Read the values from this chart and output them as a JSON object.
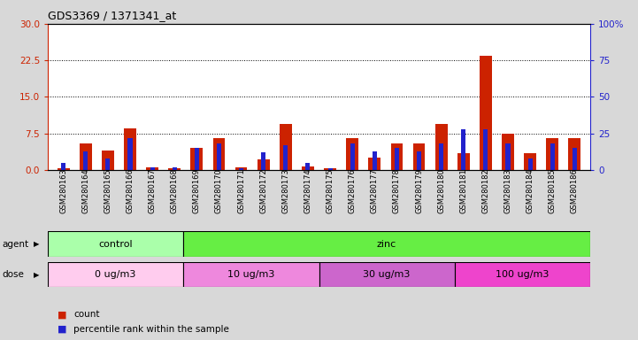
{
  "title": "GDS3369 / 1371341_at",
  "samples": [
    "GSM280163",
    "GSM280164",
    "GSM280165",
    "GSM280166",
    "GSM280167",
    "GSM280168",
    "GSM280169",
    "GSM280170",
    "GSM280171",
    "GSM280172",
    "GSM280173",
    "GSM280174",
    "GSM280175",
    "GSM280176",
    "GSM280177",
    "GSM280178",
    "GSM280179",
    "GSM280180",
    "GSM280181",
    "GSM280182",
    "GSM280183",
    "GSM280184",
    "GSM280185",
    "GSM280186"
  ],
  "count": [
    0.3,
    5.5,
    4.0,
    8.5,
    0.5,
    0.3,
    4.5,
    6.5,
    0.5,
    2.2,
    9.5,
    0.8,
    0.3,
    6.5,
    2.5,
    5.5,
    5.5,
    9.5,
    3.5,
    23.5,
    7.5,
    3.5,
    6.5,
    6.5
  ],
  "percentile": [
    5.0,
    13.0,
    8.0,
    22.0,
    2.0,
    2.0,
    15.0,
    18.0,
    1.0,
    12.0,
    17.0,
    5.0,
    1.0,
    18.0,
    13.0,
    15.0,
    13.0,
    18.0,
    28.0,
    28.0,
    18.0,
    8.0,
    18.0,
    15.0
  ],
  "ylim_left": [
    0,
    30
  ],
  "ylim_right": [
    0,
    100
  ],
  "yticks_left": [
    0,
    7.5,
    15,
    22.5,
    30
  ],
  "yticks_right": [
    0,
    25,
    50,
    75,
    100
  ],
  "bar_color_red": "#cc2200",
  "bar_color_blue": "#2222cc",
  "agent_groups": [
    {
      "label": "control",
      "start": 0,
      "end": 6,
      "color": "#aaffaa"
    },
    {
      "label": "zinc",
      "start": 6,
      "end": 24,
      "color": "#66ee44"
    }
  ],
  "dose_groups": [
    {
      "label": "0 ug/m3",
      "start": 0,
      "end": 6,
      "color": "#ffccee"
    },
    {
      "label": "10 ug/m3",
      "start": 6,
      "end": 12,
      "color": "#ee88dd"
    },
    {
      "label": "30 ug/m3",
      "start": 12,
      "end": 18,
      "color": "#cc66cc"
    },
    {
      "label": "100 ug/m3",
      "start": 18,
      "end": 24,
      "color": "#ee44cc"
    }
  ],
  "background_color": "#d8d8d8",
  "plot_bg_color": "#ffffff",
  "left_tick_color": "#cc2200",
  "right_tick_color": "#2222cc",
  "bar_width": 0.55,
  "blue_bar_width": 0.2
}
